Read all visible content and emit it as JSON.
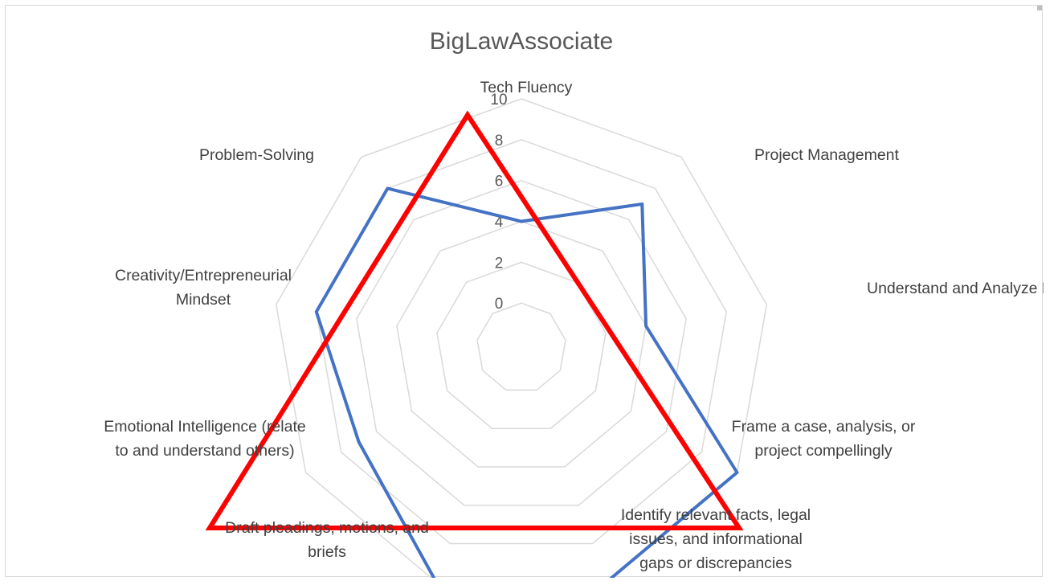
{
  "chart_data": {
    "type": "radar",
    "title": "BigLawAssociate",
    "categories": [
      [
        "Tech Fluency"
      ],
      [
        "Project Management"
      ],
      [
        "Understand and Analyze Data"
      ],
      [
        "Frame a case, analysis, or",
        "project compellingly"
      ],
      [
        "Identify relevant facts, legal",
        "issues, and informational",
        "gaps or discrepancies"
      ],
      [
        "Draft pleadings, motions, and",
        "briefs"
      ],
      [
        "Emotional Intelligence (relate",
        "to and understand others)"
      ],
      [
        "Creativity/Entrepreneurial",
        "Mindset"
      ],
      [
        "Problem-Solving"
      ]
    ],
    "axis_ticks": [
      "0",
      "2",
      "4",
      "6",
      "8",
      "10"
    ],
    "ylim": [
      0,
      10
    ],
    "series": [
      {
        "values": [
          4,
          7,
          4,
          10,
          10,
          10,
          7,
          8,
          8
        ],
        "color": "#4472c4"
      },
      {
        "color": "#ff0000",
        "type": "triangle",
        "vertices": [
          {
            "x": 575,
            "y": 136
          },
          {
            "x": 913,
            "y": 650
          },
          {
            "x": 254,
            "y": 650
          }
        ]
      }
    ]
  }
}
